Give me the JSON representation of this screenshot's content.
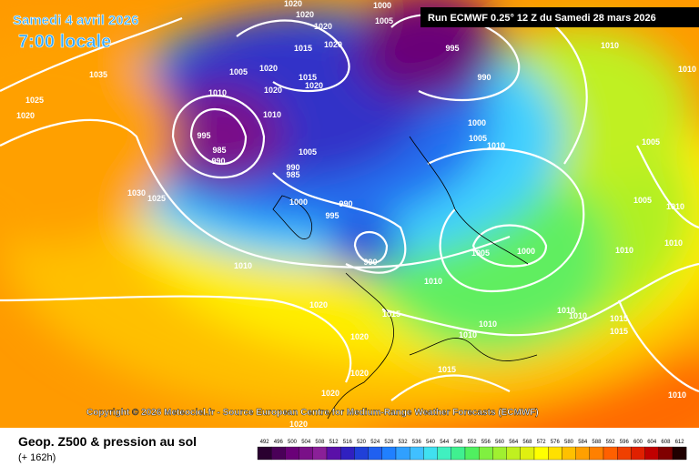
{
  "header": {
    "date": "Samedi 4 avril 2026",
    "time": "7:00 locale",
    "run": "Run ECMWF 0.25° 12 Z du Samedi 28 mars 2026"
  },
  "copyright": "Copyright © 2026 Meteociel.fr - Source European Centre for Medium-Range Weather Forecasts (ECMWF)",
  "footer": {
    "title": "Geop. Z500 & pression au sol",
    "lead": "(+ 162h)"
  },
  "colorbar": {
    "ticks": [
      492,
      496,
      500,
      504,
      508,
      512,
      516,
      520,
      524,
      528,
      532,
      536,
      540,
      544,
      548,
      552,
      556,
      560,
      564,
      568,
      572,
      576,
      580,
      584,
      588,
      592,
      596,
      600,
      604,
      608,
      612
    ],
    "colors": [
      "#2a0030",
      "#4a0058",
      "#6a0078",
      "#7a1088",
      "#8a2098",
      "#5a10a8",
      "#3020c0",
      "#2040d8",
      "#2060f0",
      "#2080ff",
      "#30a0ff",
      "#40c0ff",
      "#40e0f0",
      "#40f0c0",
      "#40f090",
      "#50f060",
      "#80f040",
      "#a0f030",
      "#c0f020",
      "#e0f010",
      "#ffff00",
      "#ffe000",
      "#ffc000",
      "#ffa000",
      "#ff8000",
      "#ff6000",
      "#f04000",
      "#e02000",
      "#c00000",
      "#800000",
      "#200000"
    ]
  },
  "isobars": [
    "1020",
    "1020",
    "1000",
    "1005",
    "1020",
    "1015",
    "1020",
    "995",
    "990",
    "1010",
    "1035",
    "1005",
    "1020",
    "1015",
    "1020",
    "1020",
    "1010",
    "1025",
    "1020",
    "1010",
    "1000",
    "1005",
    "1010",
    "995",
    "985",
    "990",
    "1005",
    "990",
    "985",
    "1030",
    "1025",
    "1000",
    "990",
    "995",
    "1005",
    "1010",
    "1005",
    "1010",
    "1005",
    "1000",
    "1010",
    "1010",
    "990",
    "1010",
    "1010",
    "1020",
    "1015",
    "1010",
    "1010",
    "1010",
    "1010",
    "1015",
    "1015",
    "1020",
    "1020",
    "1015",
    "1020",
    "1010",
    "1020"
  ]
}
